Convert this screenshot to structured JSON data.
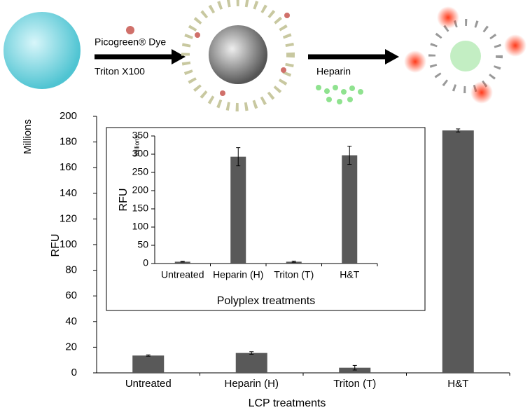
{
  "schematic": {
    "labels": [
      "Picogreen® Dye",
      "Triton X100",
      "Heparin"
    ]
  },
  "chart_data": [
    {
      "type": "bar",
      "categories": [
        "Untreated",
        "Heparin (H)",
        "Triton (T)",
        "H&T"
      ],
      "values": [
        13.5,
        15.5,
        4,
        189
      ],
      "errors": [
        0.5,
        1,
        1.8,
        1.2
      ],
      "color": "#595959",
      "ylim": [
        0,
        200
      ],
      "yticks": [
        0,
        20,
        40,
        60,
        80,
        100,
        120,
        140,
        160,
        180,
        200
      ],
      "xlabel": "LCP treatments",
      "ylabel": "RFU",
      "yunit": "Millions"
    },
    {
      "type": "bar",
      "categories": [
        "Untreated",
        "Heparin (H)",
        "Triton (T)",
        "H&T"
      ],
      "values": [
        5,
        293,
        5,
        297
      ],
      "errors": [
        1,
        25,
        1.5,
        25
      ],
      "color": "#595959",
      "ylim": [
        0,
        350
      ],
      "yticks": [
        0,
        50,
        100,
        150,
        200,
        250,
        300,
        350
      ],
      "xlabel": "Polyplex treatments",
      "ylabel": "RFU",
      "yunit": "Millions"
    }
  ]
}
